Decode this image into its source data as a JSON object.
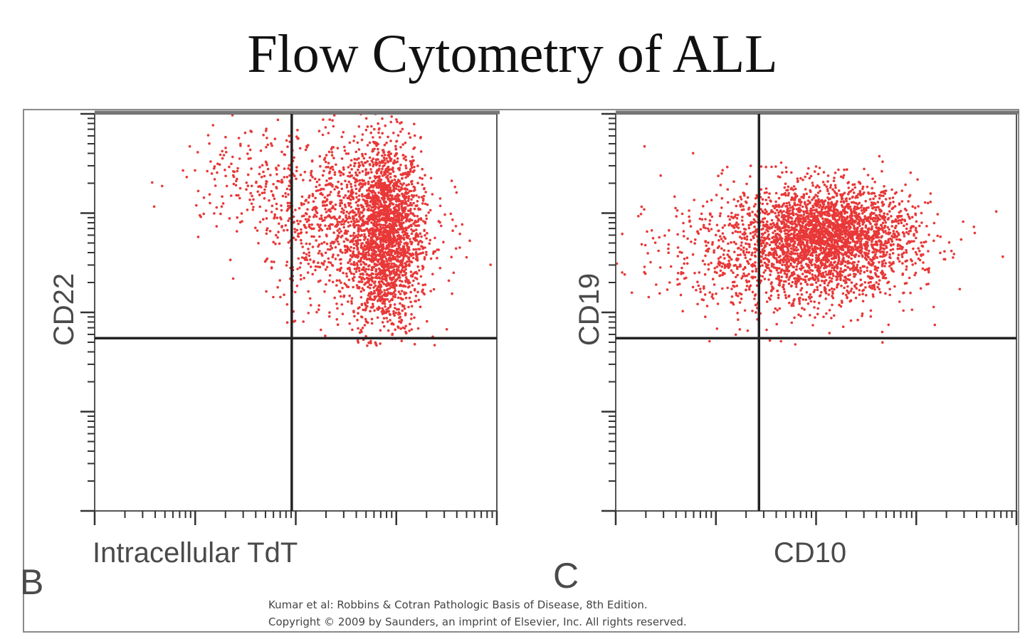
{
  "title": "Flow Cytometry of ALL",
  "caption": {
    "line1": "Kumar et al: Robbins & Cotran Pathologic Basis of Disease, 8th Edition.",
    "line2": "Copyright © 2009 by Saunders, an imprint of Elsevier, Inc. All rights reserved."
  },
  "colors": {
    "points": "#e83838",
    "axes": "#333333",
    "frame": "#8a8a8a"
  },
  "chart_data": [
    {
      "type": "scatter",
      "panel_label": "B",
      "xlabel": "Intracellular TdT",
      "ylabel": "CD22",
      "scale": "log",
      "xlim_decades": [
        0,
        4
      ],
      "ylim_decades": [
        0,
        4
      ],
      "quadrant_gate": {
        "x": 1.96,
        "y": 1.74
      },
      "clusters": [
        {
          "name": "dense core",
          "cx": 2.9,
          "cy": 2.75,
          "sx": 0.17,
          "sy": 0.5,
          "n": 1800
        },
        {
          "name": "diffuse upper-right",
          "cx": 2.55,
          "cy": 2.9,
          "sx": 0.42,
          "sy": 0.42,
          "n": 1100
        },
        {
          "name": "sparse upper-left",
          "cx": 1.55,
          "cy": 3.35,
          "sx": 0.35,
          "sy": 0.25,
          "n": 180
        }
      ]
    },
    {
      "type": "scatter",
      "panel_label": "C",
      "xlabel": "CD10",
      "ylabel": "CD19",
      "scale": "log",
      "xlim_decades": [
        0,
        4
      ],
      "ylim_decades": [
        0,
        4
      ],
      "quadrant_gate": {
        "x": 1.43,
        "y": 1.74
      },
      "clusters": [
        {
          "name": "dense core",
          "cx": 2.15,
          "cy": 2.78,
          "sx": 0.4,
          "sy": 0.24,
          "n": 2000
        },
        {
          "name": "diffuse",
          "cx": 1.75,
          "cy": 2.62,
          "sx": 0.62,
          "sy": 0.33,
          "n": 1300
        }
      ]
    }
  ]
}
